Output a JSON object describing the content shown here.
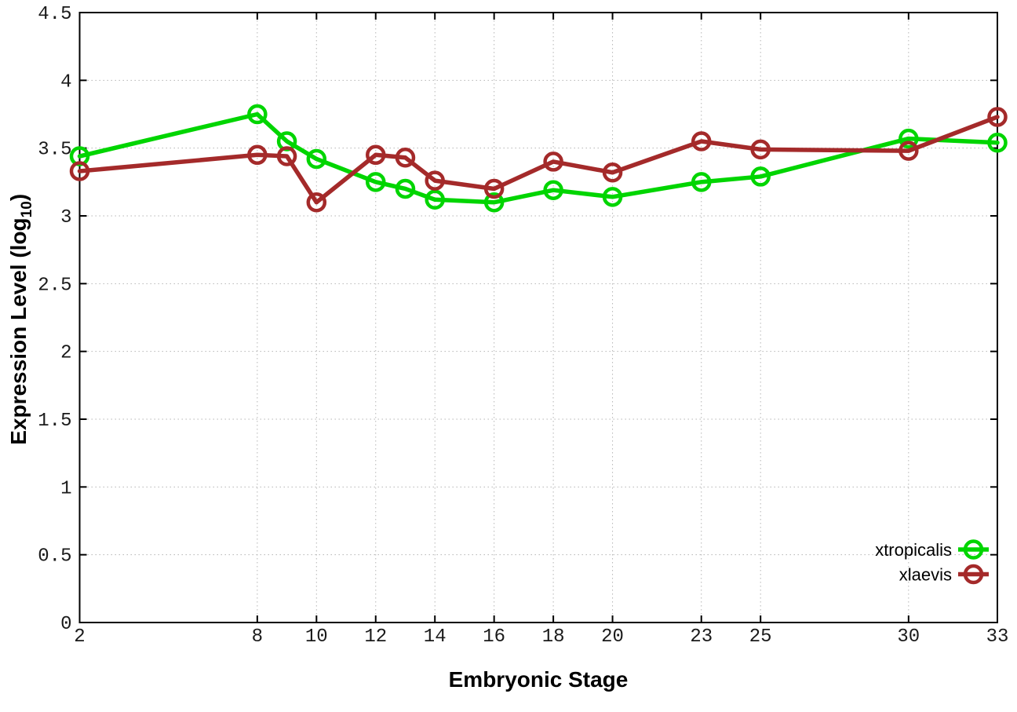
{
  "chart_data": {
    "type": "line",
    "title": "",
    "xlabel": "Embryonic Stage",
    "ylabel_parts": {
      "main": "Expression Level (log",
      "sub": "10",
      "close": ")"
    },
    "x": [
      2,
      8,
      9,
      10,
      12,
      13,
      14,
      16,
      18,
      20,
      23,
      25,
      30,
      33
    ],
    "series": [
      {
        "name": "xtropicalis",
        "color": "#00d500",
        "values": [
          3.44,
          3.75,
          3.55,
          3.42,
          3.25,
          3.2,
          3.12,
          3.1,
          3.19,
          3.14,
          3.25,
          3.29,
          3.57,
          3.54
        ]
      },
      {
        "name": "xlaevis",
        "color": "#a42a2a",
        "values": [
          3.33,
          3.45,
          3.44,
          3.1,
          3.45,
          3.43,
          3.26,
          3.2,
          3.4,
          3.32,
          3.55,
          3.49,
          3.48,
          3.73
        ]
      }
    ],
    "xlim": [
      2,
      33
    ],
    "ylim": [
      0,
      4.5
    ],
    "x_ticks": [
      2,
      8,
      10,
      12,
      14,
      16,
      18,
      20,
      23,
      25,
      30,
      33
    ],
    "y_ticks": [
      0,
      0.5,
      1,
      1.5,
      2,
      2.5,
      3,
      3.5,
      4,
      4.5
    ],
    "grid": true,
    "legend_position": "bottom-right",
    "axis_color": "#000000",
    "grid_color": "#b5b5b5",
    "tick_label_color": "#1a1a1a",
    "background": "#ffffff"
  }
}
